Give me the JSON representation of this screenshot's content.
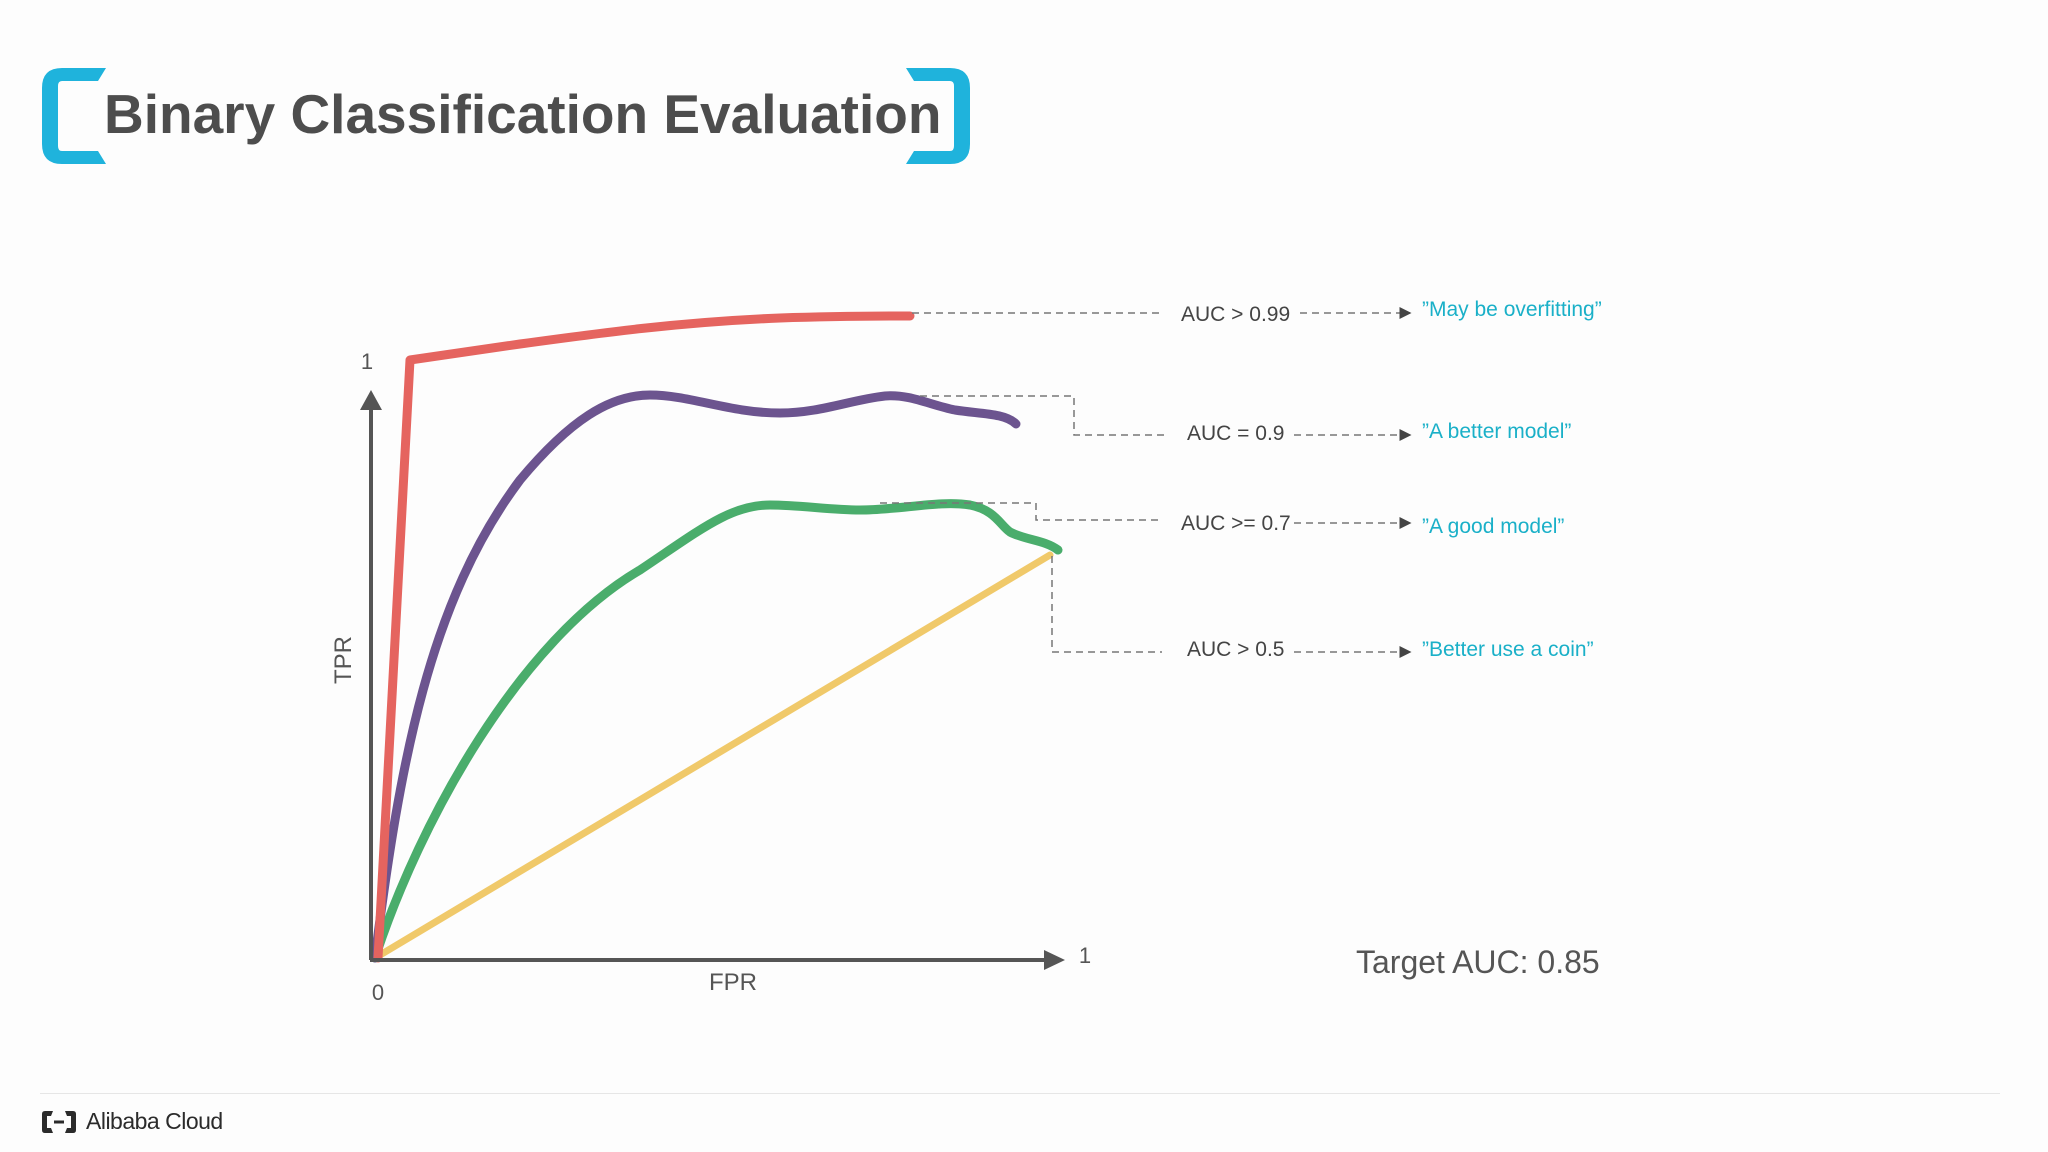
{
  "title": "Binary Classification Evaluation",
  "brand": {
    "name": "Alibaba Cloud",
    "logo_icon": "alibaba-cloud-logo-icon"
  },
  "colors": {
    "accent": "#1fb3dc",
    "quote": "#1ab0c8",
    "red": "#e5645f",
    "purple": "#6c548f",
    "green": "#4aad6c",
    "yellow": "#f0c96a",
    "axis": "#555555"
  },
  "axes": {
    "x_label": "FPR",
    "y_label": "TPR",
    "origin": "0",
    "x_max": "1",
    "y_max": "1"
  },
  "target": "Target AUC: 0.85",
  "annotations": [
    {
      "auc": "AUC > 0.99",
      "comment": "”May be overfitting”"
    },
    {
      "auc": "AUC = 0.9",
      "comment": "”A better model”"
    },
    {
      "auc": "AUC >= 0.7",
      "comment": "”A good model”"
    },
    {
      "auc": "AUC > 0.5",
      "comment": "”Better use a coin”"
    }
  ]
}
